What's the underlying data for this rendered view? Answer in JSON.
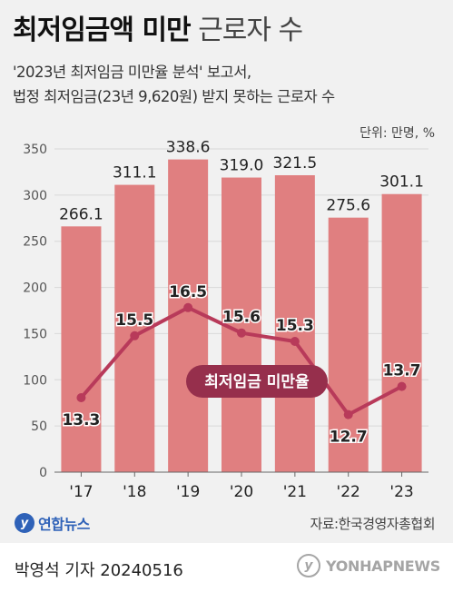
{
  "header": {
    "title_bold": "최저임금액 미만",
    "title_light": "근로자 수",
    "subtitle_line1": "'2023년 최저임금 미만율 분석' 보고서,",
    "subtitle_line2": "법정 최저임금(23년 9,620원) 받지 못하는 근로자 수",
    "unit": "단위: 만명, %"
  },
  "chart_data": {
    "type": "bar",
    "categories": [
      "'17",
      "'18",
      "'19",
      "'20",
      "'21",
      "'22",
      "'23"
    ],
    "series": [
      {
        "type": "bar",
        "values": [
          266.1,
          311.1,
          338.6,
          319.0,
          321.5,
          275.6,
          301.1
        ],
        "labels": [
          "266.1",
          "311.1",
          "338.6",
          "319.0",
          "321.5",
          "275.6",
          "301.1"
        ]
      },
      {
        "name": "최저임금 미만율",
        "type": "line",
        "values": [
          13.3,
          15.5,
          16.5,
          15.6,
          15.3,
          12.7,
          13.7
        ],
        "labels": [
          "13.3",
          "15.5",
          "16.5",
          "15.6",
          "15.3",
          "12.7",
          "13.7"
        ]
      }
    ],
    "ylim": [
      0,
      350
    ],
    "yticks": [
      0,
      50,
      100,
      150,
      200,
      250,
      300,
      350
    ],
    "ytick_labels": [
      "0",
      "50",
      "100",
      "150",
      "200",
      "250",
      "300",
      "350"
    ],
    "line_label": "최저임금 미만율",
    "grid": true,
    "colors": {
      "bar": "#e07f80",
      "line": "#b83a5a",
      "line_label_bg": "#962f4c",
      "grid": "#d8d8d8"
    }
  },
  "footer": {
    "logo_text": "연합뉴스",
    "source": "자료:한국경영자총협회",
    "reporter": "박영석 기자  20240516",
    "watermark": "YONHAPNEWS"
  }
}
